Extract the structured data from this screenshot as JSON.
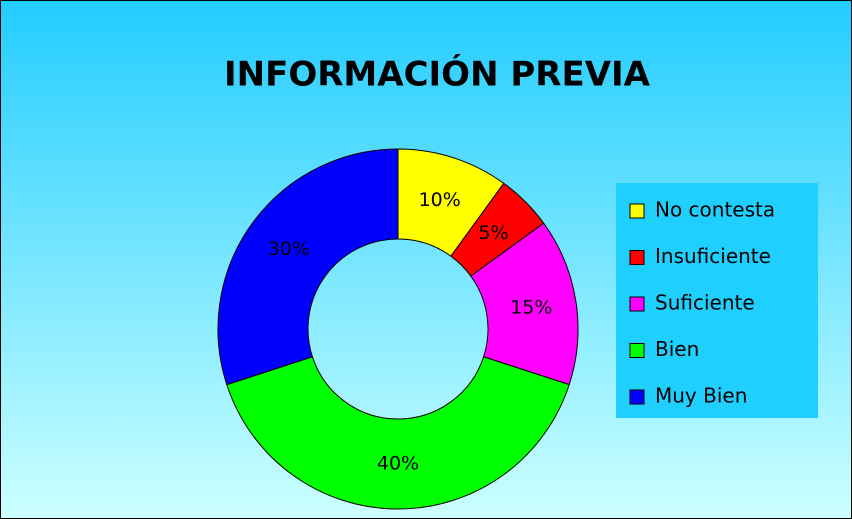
{
  "chart_data": {
    "type": "donut",
    "title": "INFORMACIÓN PREVIA",
    "categories": [
      "No contesta",
      "Insuficiente",
      "Suficiente",
      "Bien",
      "Muy Bien"
    ],
    "values": [
      10,
      5,
      15,
      40,
      30
    ],
    "value_labels": [
      "10%",
      "5%",
      "15%",
      "40%",
      "30%"
    ],
    "colors": [
      "#ffff00",
      "#ff0000",
      "#ff00ff",
      "#00ff00",
      "#0000ff"
    ],
    "legend": "right"
  }
}
